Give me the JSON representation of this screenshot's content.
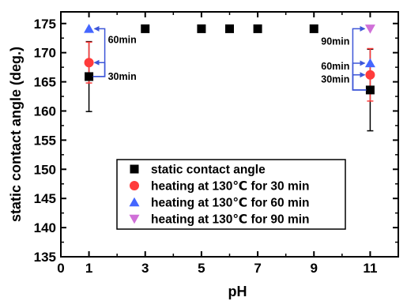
{
  "chart_data": {
    "type": "scatter",
    "title": "",
    "xlabel": "pH",
    "ylabel": "static contact angle (deg.)",
    "xlim": [
      0,
      12
    ],
    "ylim": [
      135,
      177
    ],
    "xticks": [
      0,
      1,
      3,
      5,
      7,
      9,
      11
    ],
    "yticks": [
      135,
      140,
      145,
      150,
      155,
      160,
      165,
      170,
      175
    ],
    "xtick_labels": [
      "0",
      "1",
      "3",
      "5",
      "7",
      "9",
      "11"
    ],
    "ytick_labels": [
      "135",
      "140",
      "145",
      "150",
      "155",
      "160",
      "165",
      "170",
      "175"
    ],
    "grid": false,
    "legend_position": "bottom-center",
    "series": [
      {
        "name": "static contact angle",
        "marker": "square",
        "color": "#000000",
        "x": [
          1,
          3,
          5,
          6,
          7,
          9,
          11
        ],
        "y": [
          165.9,
          174.1,
          174.1,
          174.1,
          174.1,
          174.1,
          163.6
        ],
        "error": [
          6.0,
          null,
          null,
          null,
          null,
          null,
          7.0
        ]
      },
      {
        "name": "heating at 130℃ for 30 min",
        "marker": "circle",
        "color": "#ff3b3b",
        "x": [
          1,
          11
        ],
        "y": [
          168.3,
          166.2
        ],
        "error": [
          3.5,
          4.5
        ]
      },
      {
        "name": "heating at 130℃ for 60 min",
        "marker": "triangle-up",
        "color": "#4466ff",
        "x": [
          1,
          11
        ],
        "y": [
          174.1,
          168.2
        ],
        "error": [
          null,
          null
        ]
      },
      {
        "name": "heating at 130℃ for 90 min",
        "marker": "triangle-down",
        "color": "#d070d8",
        "x": [
          11
        ],
        "y": [
          174.1
        ],
        "error": [
          null
        ]
      }
    ],
    "annotations": [
      {
        "text": "60min",
        "x": 1,
        "y": 174.1,
        "side": "right"
      },
      {
        "text": "30min",
        "x": 1,
        "y": 168.3,
        "side": "right"
      },
      {
        "text": "90min",
        "x": 11,
        "y": 174.1,
        "side": "left"
      },
      {
        "text": "60min",
        "x": 11,
        "y": 168.2,
        "side": "left"
      },
      {
        "text": "30min",
        "x": 11,
        "y": 166.2,
        "side": "left"
      }
    ]
  },
  "colors": {
    "arrow": "#3d56d8",
    "axis": "#000000"
  }
}
